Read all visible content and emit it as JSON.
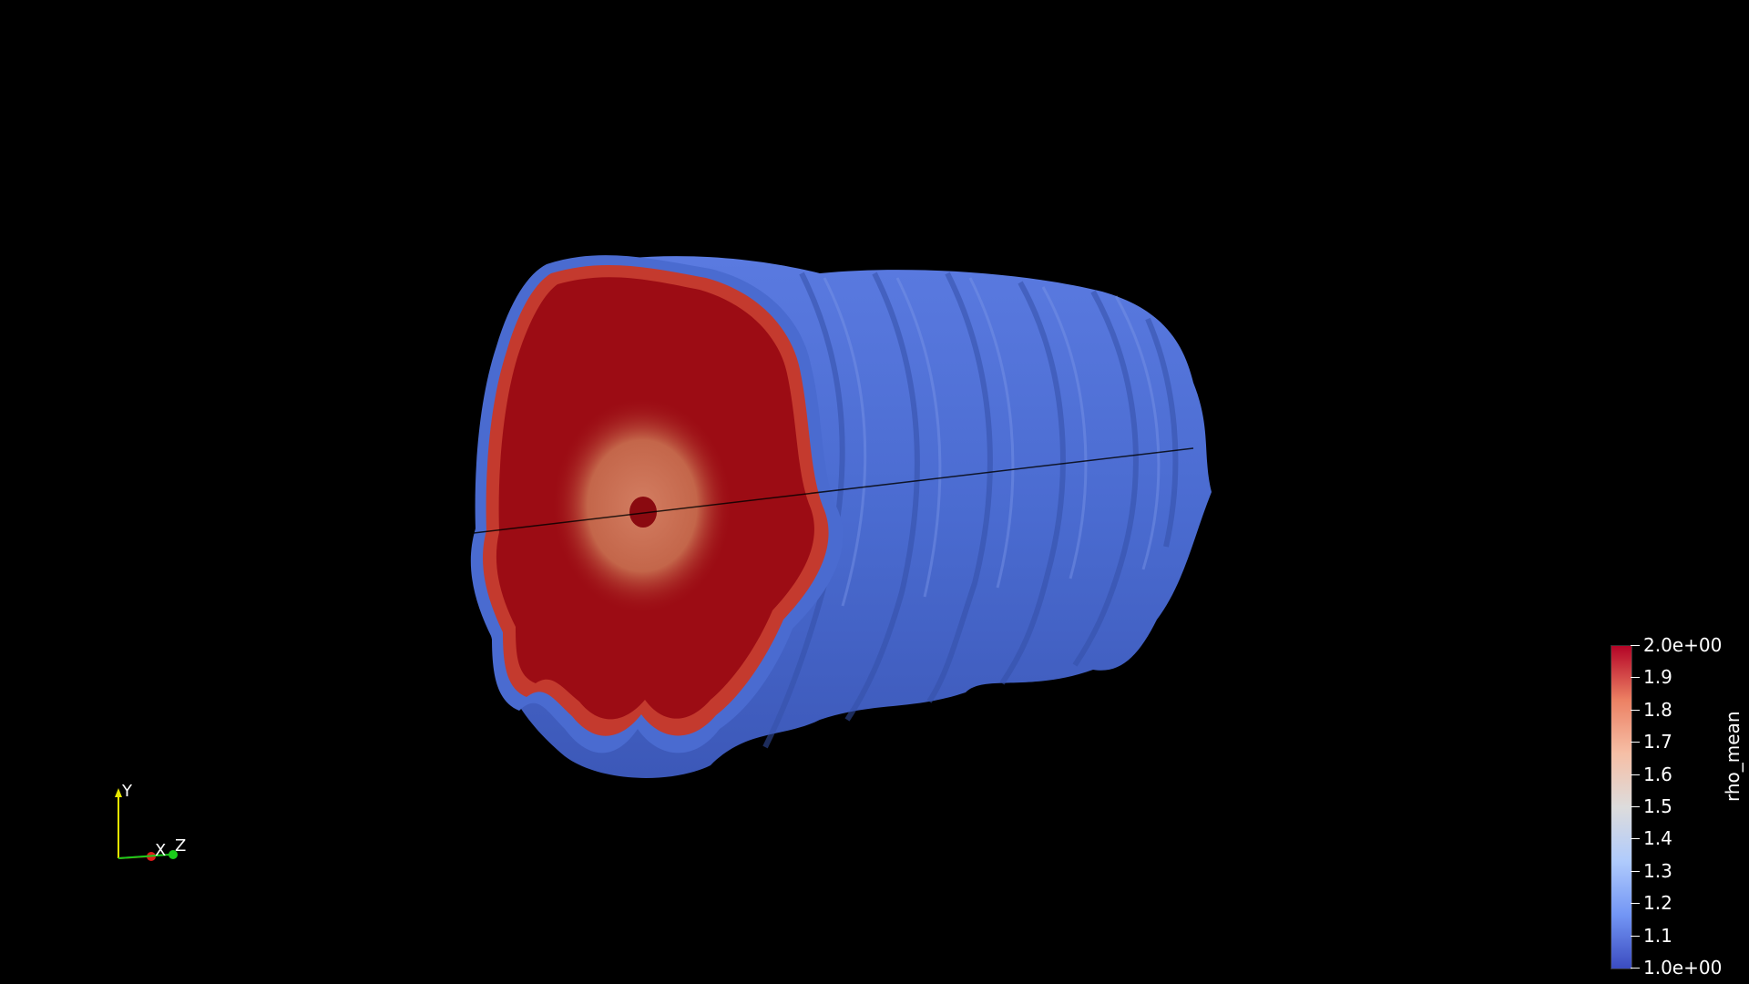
{
  "colorbar": {
    "title": "rho_mean",
    "max_label": "2.0e+00",
    "min_label": "1.0e+00",
    "ticks": [
      "1.9",
      "1.8",
      "1.7",
      "1.6",
      "1.5",
      "1.4",
      "1.3",
      "1.2",
      "1.1"
    ],
    "range": [
      1.0,
      2.0
    ],
    "colormap": [
      "#3b4cc0",
      "#7396f5",
      "#b0cbfc",
      "#dddcdc",
      "#f6bfa6",
      "#ec8063",
      "#b40426"
    ]
  },
  "axes": {
    "x_label": "X",
    "y_label": "Y",
    "z_label": "Z",
    "x_color": "#e21a1a",
    "y_color": "#e6e600",
    "z_color": "#1acc1a"
  },
  "scene": {
    "background": "#000000",
    "surface_color": "#4a6bd0",
    "core_color": "#9c0c14"
  }
}
